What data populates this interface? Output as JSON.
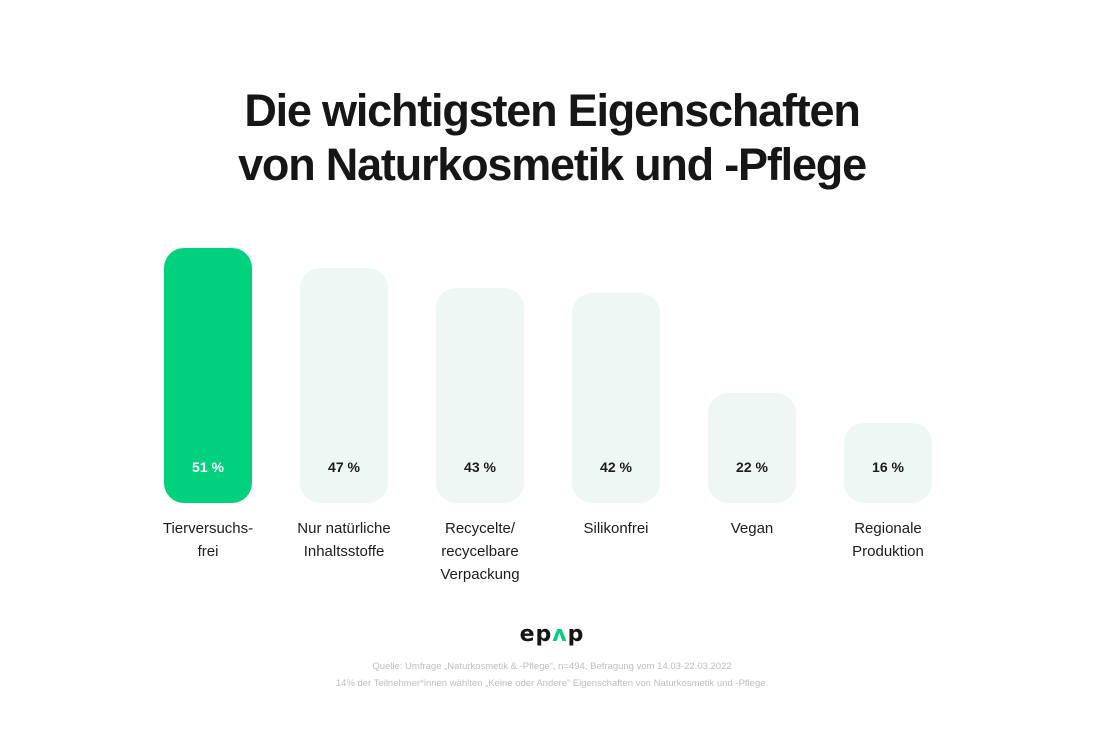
{
  "title": {
    "line1": "Die wichtigsten Eigenschaften",
    "line2": "von Naturkosmetik und -Pflege"
  },
  "colors": {
    "highlight": "#00d17f",
    "bar": "#eff7f4",
    "highlight_text": "#ffffff",
    "text": "#1b1d1c"
  },
  "chart_data": {
    "type": "bar",
    "title": "Die wichtigsten Eigenschaften von Naturkosmetik und -Pflege",
    "xlabel": "",
    "ylabel": "",
    "ylim": [
      0,
      100
    ],
    "grid": false,
    "unit": "%",
    "categories": [
      [
        "Tierversuchs-",
        "frei"
      ],
      [
        "Nur natürliche",
        "Inhaltsstoffe"
      ],
      [
        "Recycelte/",
        "recycelbare",
        "Verpackung"
      ],
      [
        "Silikonfrei"
      ],
      [
        "Vegan"
      ],
      [
        "Regionale",
        "Produktion"
      ]
    ],
    "values": [
      51,
      47,
      43,
      42,
      22,
      16
    ],
    "value_labels": [
      "51 %",
      "47 %",
      "43 %",
      "42 %",
      "22 %",
      "16 %"
    ],
    "highlight_index": 0
  },
  "logo": {
    "text_before": "ep",
    "accent": "ʌ",
    "text_after": "p"
  },
  "source": {
    "line1": "Quelle: Umfrage „Naturkosmetik & -Pflege“, n=494, Befragung vom 14.03-22.03.2022",
    "line2": "14% der Teilnehmer*innen wählten „Keine oder Andere” Eigenschaften von Naturkosmetik und -Pflege."
  }
}
